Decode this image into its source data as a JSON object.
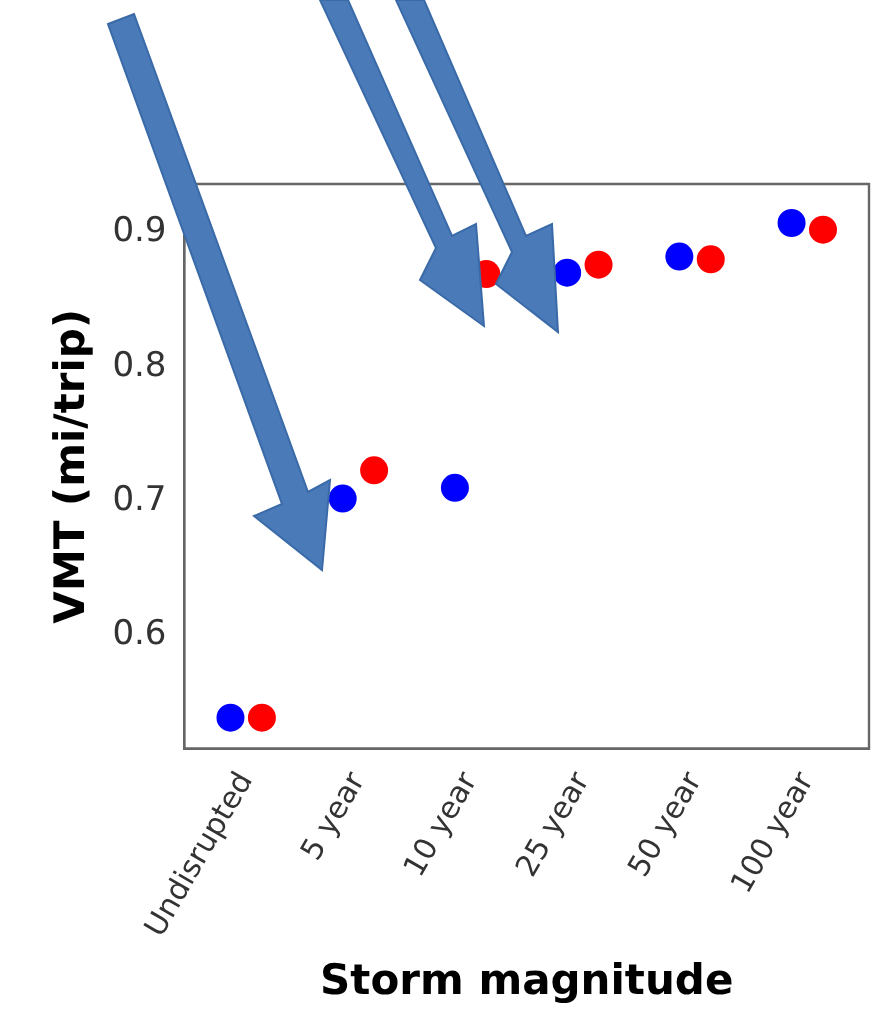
{
  "chart_data": {
    "type": "scatter",
    "xlabel": "Storm magnitude",
    "ylabel": "VMT (mi/trip)",
    "categories": [
      "Undisrupted",
      "5 year",
      "10 year",
      "25 year",
      "50 year",
      "100 year"
    ],
    "series": [
      {
        "color": "#0000ff",
        "values": [
          0.539,
          0.702,
          0.71,
          0.87,
          0.882,
          0.907
        ]
      },
      {
        "color": "#ff0000",
        "values": [
          0.539,
          0.723,
          0.869,
          0.876,
          0.88,
          0.902
        ]
      }
    ],
    "ylim": [
      0.516,
      0.936
    ],
    "yticks": [
      0.6,
      0.7,
      0.8,
      0.9
    ],
    "grid": false,
    "legend": false,
    "marker": "circle"
  }
}
